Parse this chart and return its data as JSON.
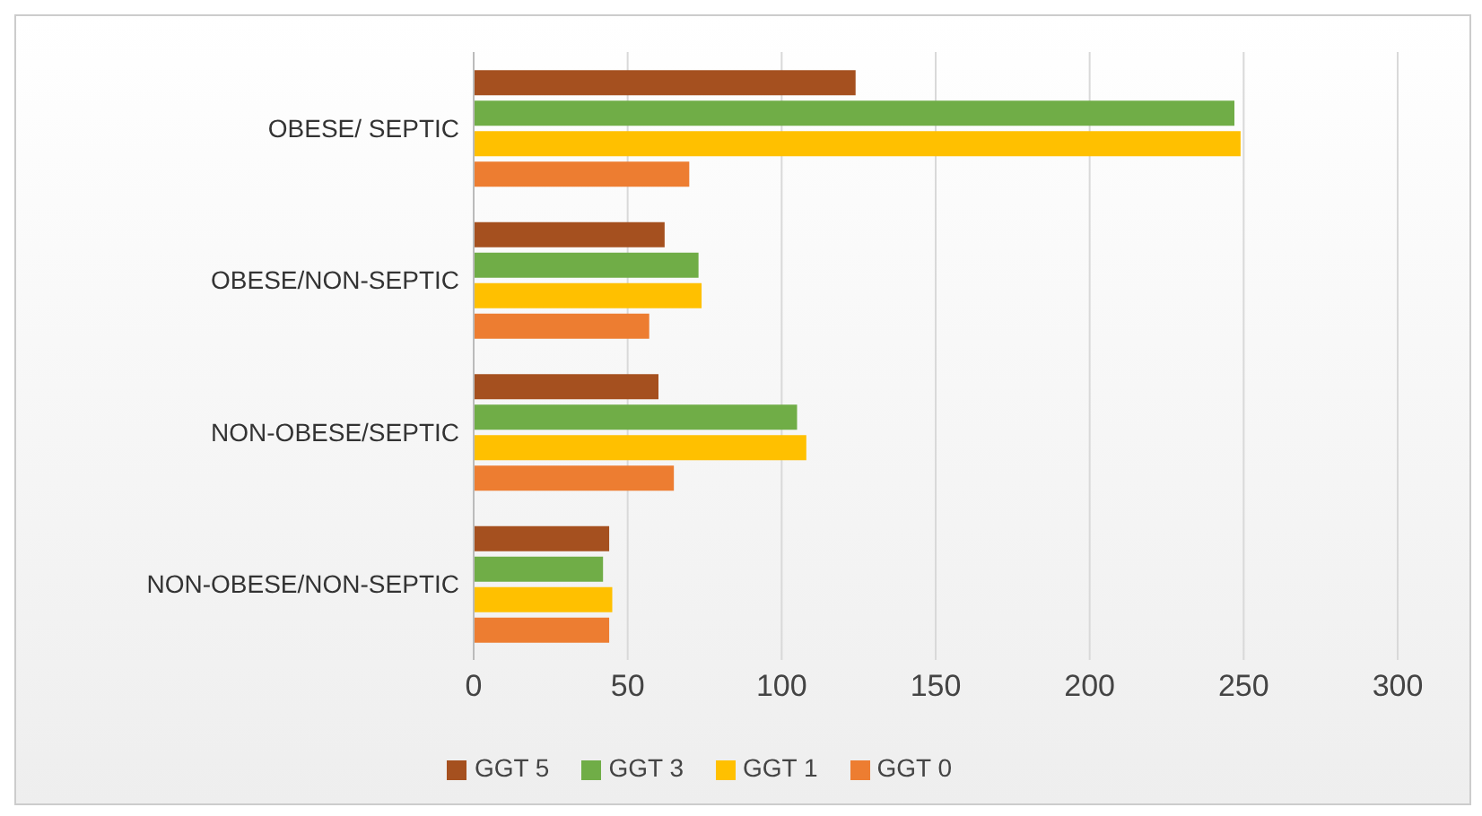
{
  "chart_data": {
    "type": "bar",
    "orientation": "horizontal",
    "categories": [
      "OBESE/ SEPTIC",
      "OBESE/NON-SEPTIC",
      "NON-OBESE/SEPTIC",
      "NON-OBESE/NON-SEPTIC"
    ],
    "series": [
      {
        "name": "GGT 5",
        "color": "#a5501f",
        "values": [
          124,
          62,
          60,
          44
        ]
      },
      {
        "name": "GGT 3",
        "color": "#70ad47",
        "values": [
          247,
          73,
          105,
          42
        ]
      },
      {
        "name": "GGT 1",
        "color": "#ffc000",
        "values": [
          249,
          74,
          108,
          45
        ]
      },
      {
        "name": "GGT 0",
        "color": "#ed7d31",
        "values": [
          70,
          57,
          65,
          44
        ]
      }
    ],
    "xlim": [
      0,
      300
    ],
    "xticks": [
      0,
      50,
      100,
      150,
      200,
      250,
      300
    ],
    "grid": "x",
    "legend": "bottom"
  }
}
